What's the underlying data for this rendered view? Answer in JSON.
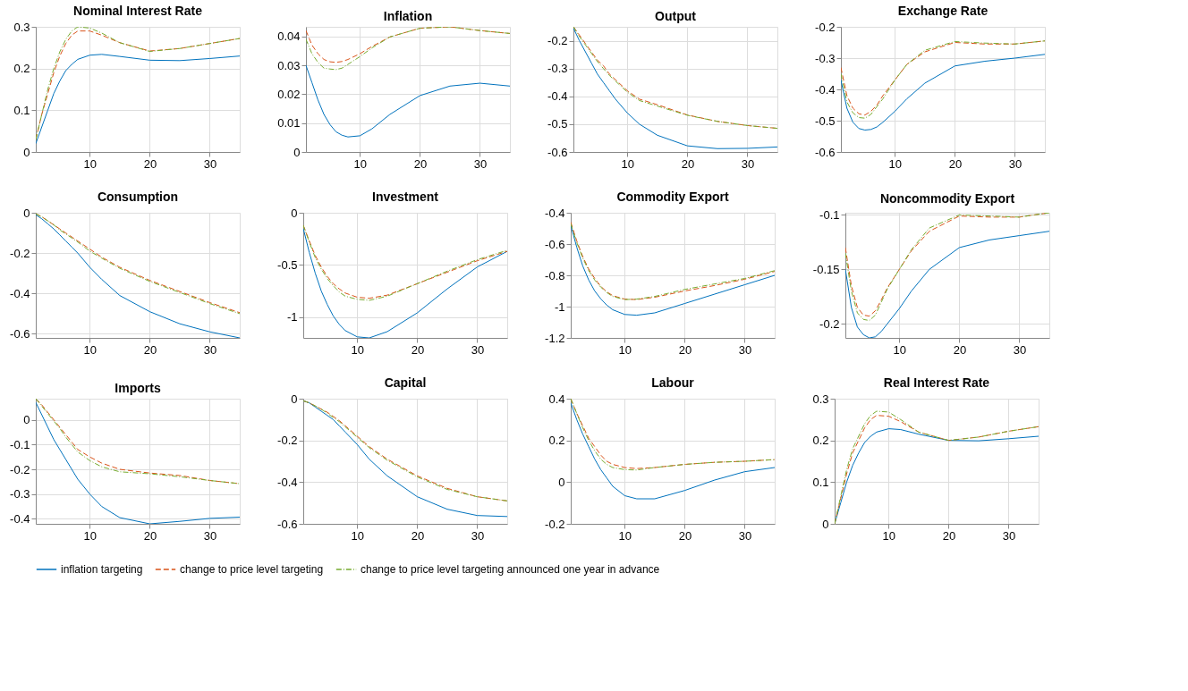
{
  "chart_data": [
    {
      "type": "line",
      "title": "Nominal Interest Rate",
      "x": [
        1,
        2,
        3,
        4,
        5,
        6,
        7,
        8,
        10,
        12,
        15,
        20,
        25,
        30,
        35
      ],
      "xlim": [
        1,
        35
      ],
      "xticks": [
        10,
        20,
        30
      ],
      "ylim": [
        0,
        0.3
      ],
      "yticks": [
        0,
        0.1,
        0.2,
        0.3
      ],
      "grid": true,
      "legend": "bottom",
      "series": [
        {
          "name": "inflation targeting",
          "color": "#0072bd",
          "line_style": "solid",
          "values": [
            0.02,
            0.06,
            0.1,
            0.14,
            0.17,
            0.195,
            0.21,
            0.222,
            0.232,
            0.234,
            0.229,
            0.22,
            0.219,
            0.224,
            0.23
          ]
        },
        {
          "name": "change to price level targeting",
          "color": "#d95319",
          "line_style": "dashed",
          "values": [
            0.03,
            0.09,
            0.14,
            0.19,
            0.23,
            0.26,
            0.28,
            0.29,
            0.29,
            0.28,
            0.262,
            0.242,
            0.248,
            0.26,
            0.272
          ]
        },
        {
          "name": "change to price level targeting announced one year in advance",
          "color": "#77ac30",
          "line_style": "dashdot",
          "values": [
            0.03,
            0.09,
            0.15,
            0.2,
            0.24,
            0.27,
            0.29,
            0.3,
            0.297,
            0.285,
            0.262,
            0.241,
            0.248,
            0.26,
            0.272
          ]
        }
      ]
    },
    {
      "type": "line",
      "title": "Inflation",
      "x": [
        1,
        2,
        3,
        4,
        5,
        6,
        7,
        8,
        10,
        12,
        15,
        20,
        25,
        30,
        35
      ],
      "xlim": [
        1,
        35
      ],
      "xticks": [
        10,
        20,
        30
      ],
      "ylim": [
        0,
        0.0433
      ],
      "yticks": [
        0,
        0.01,
        0.02,
        0.03,
        0.04
      ],
      "grid": true,
      "legend": "bottom",
      "series": [
        {
          "name": "inflation targeting",
          "color": "#0072bd",
          "line_style": "solid",
          "values": [
            0.03,
            0.024,
            0.018,
            0.013,
            0.0095,
            0.007,
            0.0058,
            0.0052,
            0.0056,
            0.008,
            0.013,
            0.0195,
            0.0228,
            0.0238,
            0.0228
          ]
        },
        {
          "name": "change to price level targeting",
          "color": "#d95319",
          "line_style": "dashed",
          "values": [
            0.042,
            0.037,
            0.034,
            0.032,
            0.0312,
            0.031,
            0.0313,
            0.032,
            0.034,
            0.0365,
            0.0398,
            0.0428,
            0.0433,
            0.042,
            0.041
          ]
        },
        {
          "name": "change to price level targeting announced one year in advance",
          "color": "#77ac30",
          "line_style": "dashdot",
          "values": [
            0.039,
            0.034,
            0.031,
            0.029,
            0.0287,
            0.0285,
            0.029,
            0.0303,
            0.033,
            0.036,
            0.0398,
            0.0428,
            0.0433,
            0.042,
            0.041
          ]
        }
      ]
    },
    {
      "type": "line",
      "title": "Output",
      "x": [
        1,
        2,
        3,
        4,
        5,
        6,
        7,
        8,
        10,
        12,
        15,
        20,
        25,
        30,
        35
      ],
      "xlim": [
        1,
        35
      ],
      "xticks": [
        10,
        20,
        30
      ],
      "ylim": [
        -0.6,
        -0.15
      ],
      "yticks": [
        -0.6,
        -0.5,
        -0.4,
        -0.3,
        -0.2
      ],
      "grid": true,
      "legend": "bottom",
      "series": [
        {
          "name": "inflation targeting",
          "color": "#0072bd",
          "line_style": "solid",
          "values": [
            -0.155,
            -0.2,
            -0.24,
            -0.28,
            -0.32,
            -0.35,
            -0.38,
            -0.41,
            -0.46,
            -0.5,
            -0.54,
            -0.578,
            -0.588,
            -0.587,
            -0.582
          ]
        },
        {
          "name": "change to price level targeting",
          "color": "#d95319",
          "line_style": "dashed",
          "values": [
            -0.15,
            -0.18,
            -0.21,
            -0.24,
            -0.27,
            -0.29,
            -0.32,
            -0.34,
            -0.38,
            -0.41,
            -0.43,
            -0.467,
            -0.49,
            -0.505,
            -0.515
          ]
        },
        {
          "name": "change to price level targeting announced one year in advance",
          "color": "#77ac30",
          "line_style": "dashdot",
          "values": [
            -0.15,
            -0.185,
            -0.215,
            -0.245,
            -0.275,
            -0.3,
            -0.325,
            -0.345,
            -0.385,
            -0.415,
            -0.435,
            -0.468,
            -0.49,
            -0.505,
            -0.515
          ]
        }
      ]
    },
    {
      "type": "line",
      "title": "Exchange Rate",
      "x": [
        1,
        2,
        3,
        4,
        5,
        6,
        7,
        8,
        10,
        12,
        15,
        20,
        25,
        30,
        35
      ],
      "xlim": [
        1,
        35
      ],
      "xticks": [
        10,
        20,
        30
      ],
      "ylim": [
        -0.6,
        -0.2
      ],
      "yticks": [
        -0.6,
        -0.5,
        -0.4,
        -0.3,
        -0.2
      ],
      "grid": true,
      "legend": "bottom",
      "series": [
        {
          "name": "inflation targeting",
          "color": "#0072bd",
          "line_style": "solid",
          "values": [
            -0.37,
            -0.46,
            -0.505,
            -0.525,
            -0.53,
            -0.528,
            -0.52,
            -0.505,
            -0.47,
            -0.43,
            -0.38,
            -0.325,
            -0.31,
            -0.3,
            -0.288
          ]
        },
        {
          "name": "change to price level targeting",
          "color": "#d95319",
          "line_style": "dashed",
          "values": [
            -0.33,
            -0.42,
            -0.46,
            -0.478,
            -0.482,
            -0.47,
            -0.45,
            -0.42,
            -0.37,
            -0.32,
            -0.28,
            -0.25,
            -0.255,
            -0.255,
            -0.245
          ]
        },
        {
          "name": "change to price level targeting announced one year in advance",
          "color": "#77ac30",
          "line_style": "dashdot",
          "values": [
            -0.35,
            -0.44,
            -0.475,
            -0.49,
            -0.492,
            -0.48,
            -0.455,
            -0.43,
            -0.37,
            -0.32,
            -0.275,
            -0.247,
            -0.252,
            -0.255,
            -0.245
          ]
        }
      ]
    },
    {
      "type": "line",
      "title": "Consumption",
      "x": [
        1,
        2,
        3,
        4,
        5,
        6,
        7,
        8,
        10,
        12,
        15,
        20,
        25,
        30,
        35
      ],
      "xlim": [
        1,
        35
      ],
      "xticks": [
        10,
        20,
        30
      ],
      "ylim": [
        -0.62,
        0
      ],
      "yticks": [
        -0.6,
        -0.4,
        -0.2,
        0
      ],
      "grid": true,
      "legend": "bottom",
      "series": [
        {
          "name": "inflation targeting",
          "color": "#0072bd",
          "line_style": "solid",
          "values": [
            -0.01,
            -0.03,
            -0.055,
            -0.08,
            -0.11,
            -0.14,
            -0.17,
            -0.2,
            -0.27,
            -0.33,
            -0.41,
            -0.49,
            -0.55,
            -0.59,
            -0.62
          ]
        },
        {
          "name": "change to price level targeting",
          "color": "#d95319",
          "line_style": "dashed",
          "values": [
            -0.005,
            -0.02,
            -0.04,
            -0.06,
            -0.08,
            -0.1,
            -0.12,
            -0.14,
            -0.18,
            -0.22,
            -0.27,
            -0.335,
            -0.39,
            -0.445,
            -0.495
          ]
        },
        {
          "name": "change to price level targeting announced one year in advance",
          "color": "#77ac30",
          "line_style": "dashdot",
          "values": [
            -0.005,
            -0.02,
            -0.04,
            -0.06,
            -0.085,
            -0.105,
            -0.125,
            -0.145,
            -0.19,
            -0.225,
            -0.275,
            -0.34,
            -0.395,
            -0.45,
            -0.5
          ]
        }
      ]
    },
    {
      "type": "line",
      "title": "Investment",
      "x": [
        1,
        2,
        3,
        4,
        5,
        6,
        7,
        8,
        10,
        12,
        15,
        20,
        25,
        30,
        35
      ],
      "xlim": [
        1,
        35
      ],
      "xticks": [
        10,
        20,
        30
      ],
      "ylim": [
        -1.2,
        0
      ],
      "yticks": [
        -1,
        -0.5,
        0
      ],
      "grid": true,
      "legend": "bottom",
      "series": [
        {
          "name": "inflation targeting",
          "color": "#0072bd",
          "line_style": "solid",
          "values": [
            -0.15,
            -0.38,
            -0.58,
            -0.75,
            -0.88,
            -0.99,
            -1.07,
            -1.13,
            -1.19,
            -1.2,
            -1.14,
            -0.96,
            -0.73,
            -0.52,
            -0.37
          ]
        },
        {
          "name": "change to price level targeting",
          "color": "#d95319",
          "line_style": "dashed",
          "values": [
            -0.12,
            -0.27,
            -0.41,
            -0.52,
            -0.61,
            -0.68,
            -0.73,
            -0.77,
            -0.81,
            -0.82,
            -0.79,
            -0.68,
            -0.57,
            -0.46,
            -0.37
          ]
        },
        {
          "name": "change to price level targeting announced one year in advance",
          "color": "#77ac30",
          "line_style": "dashdot",
          "values": [
            -0.12,
            -0.28,
            -0.43,
            -0.54,
            -0.63,
            -0.7,
            -0.76,
            -0.8,
            -0.83,
            -0.84,
            -0.8,
            -0.68,
            -0.56,
            -0.45,
            -0.36
          ]
        }
      ]
    },
    {
      "type": "line",
      "title": "Commodity Export",
      "x": [
        1,
        2,
        3,
        4,
        5,
        6,
        7,
        8,
        10,
        12,
        15,
        20,
        25,
        30,
        35
      ],
      "xlim": [
        1,
        35
      ],
      "xticks": [
        10,
        20,
        30
      ],
      "ylim": [
        -1.2,
        -0.4
      ],
      "yticks": [
        -1.2,
        -1,
        -0.8,
        -0.6,
        -0.4
      ],
      "grid": true,
      "legend": "bottom",
      "series": [
        {
          "name": "inflation targeting",
          "color": "#0072bd",
          "line_style": "solid",
          "values": [
            -0.48,
            -0.62,
            -0.74,
            -0.83,
            -0.9,
            -0.95,
            -0.99,
            -1.02,
            -1.05,
            -1.055,
            -1.04,
            -0.98,
            -0.92,
            -0.86,
            -0.8
          ]
        },
        {
          "name": "change to price level targeting",
          "color": "#d95319",
          "line_style": "dashed",
          "values": [
            -0.46,
            -0.58,
            -0.68,
            -0.76,
            -0.82,
            -0.87,
            -0.905,
            -0.93,
            -0.952,
            -0.955,
            -0.94,
            -0.9,
            -0.865,
            -0.825,
            -0.775
          ]
        },
        {
          "name": "change to price level targeting announced one year in advance",
          "color": "#77ac30",
          "line_style": "dashdot",
          "values": [
            -0.47,
            -0.59,
            -0.69,
            -0.77,
            -0.83,
            -0.875,
            -0.91,
            -0.935,
            -0.955,
            -0.952,
            -0.935,
            -0.89,
            -0.855,
            -0.82,
            -0.77
          ]
        }
      ]
    },
    {
      "type": "line",
      "title": "Noncommodity Export",
      "x": [
        1,
        2,
        3,
        4,
        5,
        6,
        7,
        8,
        10,
        12,
        15,
        20,
        25,
        30,
        35
      ],
      "xlim": [
        1,
        35
      ],
      "xticks": [
        10,
        20,
        30
      ],
      "ylim": [
        -0.213,
        -0.098
      ],
      "yticks": [
        -0.2,
        -0.15,
        -0.1
      ],
      "grid": true,
      "legend": "bottom",
      "series": [
        {
          "name": "inflation targeting",
          "color": "#0072bd",
          "line_style": "solid",
          "values": [
            -0.15,
            -0.185,
            -0.203,
            -0.21,
            -0.213,
            -0.212,
            -0.207,
            -0.2,
            -0.186,
            -0.17,
            -0.15,
            -0.13,
            -0.123,
            -0.119,
            -0.115
          ]
        },
        {
          "name": "change to price level targeting",
          "color": "#d95319",
          "line_style": "dashed",
          "values": [
            -0.13,
            -0.165,
            -0.185,
            -0.192,
            -0.193,
            -0.188,
            -0.178,
            -0.167,
            -0.15,
            -0.133,
            -0.115,
            -0.101,
            -0.102,
            -0.102,
            -0.098
          ]
        },
        {
          "name": "change to price level targeting announced one year in advance",
          "color": "#77ac30",
          "line_style": "dashdot",
          "values": [
            -0.135,
            -0.17,
            -0.19,
            -0.196,
            -0.197,
            -0.192,
            -0.18,
            -0.168,
            -0.15,
            -0.132,
            -0.112,
            -0.1,
            -0.101,
            -0.102,
            -0.098
          ]
        }
      ]
    },
    {
      "type": "line",
      "title": "Imports",
      "x": [
        1,
        2,
        3,
        4,
        5,
        6,
        7,
        8,
        10,
        12,
        15,
        20,
        25,
        30,
        35
      ],
      "xlim": [
        1,
        35
      ],
      "xticks": [
        10,
        20,
        30
      ],
      "ylim": [
        -0.42,
        0.085
      ],
      "yticks": [
        -0.4,
        -0.3,
        -0.2,
        -0.1,
        0
      ],
      "grid": true,
      "legend": "bottom",
      "series": [
        {
          "name": "inflation targeting",
          "color": "#0072bd",
          "line_style": "solid",
          "values": [
            0.07,
            0.02,
            -0.03,
            -0.08,
            -0.12,
            -0.16,
            -0.2,
            -0.24,
            -0.3,
            -0.35,
            -0.395,
            -0.42,
            -0.41,
            -0.398,
            -0.393
          ]
        },
        {
          "name": "change to price level targeting",
          "color": "#d95319",
          "line_style": "dashed",
          "values": [
            0.085,
            0.06,
            0.03,
            0.0,
            -0.03,
            -0.06,
            -0.09,
            -0.12,
            -0.15,
            -0.175,
            -0.2,
            -0.215,
            -0.225,
            -0.245,
            -0.258
          ]
        },
        {
          "name": "change to price level targeting announced one year in advance",
          "color": "#77ac30",
          "line_style": "dashdot",
          "values": [
            0.085,
            0.055,
            0.025,
            -0.005,
            -0.035,
            -0.07,
            -0.1,
            -0.13,
            -0.165,
            -0.19,
            -0.21,
            -0.218,
            -0.23,
            -0.245,
            -0.258
          ]
        }
      ]
    },
    {
      "type": "line",
      "title": "Capital",
      "x": [
        1,
        2,
        3,
        4,
        5,
        6,
        7,
        8,
        10,
        12,
        15,
        20,
        25,
        30,
        35
      ],
      "xlim": [
        1,
        35
      ],
      "xticks": [
        10,
        20,
        30
      ],
      "ylim": [
        -0.6,
        0
      ],
      "yticks": [
        -0.6,
        -0.4,
        -0.2,
        0
      ],
      "grid": true,
      "legend": "bottom",
      "series": [
        {
          "name": "inflation targeting",
          "color": "#0072bd",
          "line_style": "solid",
          "values": [
            -0.01,
            -0.02,
            -0.04,
            -0.06,
            -0.08,
            -0.1,
            -0.13,
            -0.16,
            -0.22,
            -0.29,
            -0.37,
            -0.47,
            -0.53,
            -0.56,
            -0.565
          ]
        },
        {
          "name": "change to price level targeting",
          "color": "#d95319",
          "line_style": "dashed",
          "values": [
            -0.01,
            -0.02,
            -0.035,
            -0.05,
            -0.065,
            -0.085,
            -0.105,
            -0.13,
            -0.18,
            -0.23,
            -0.29,
            -0.37,
            -0.43,
            -0.47,
            -0.49
          ]
        },
        {
          "name": "change to price level targeting announced one year in advance",
          "color": "#77ac30",
          "line_style": "dashdot",
          "values": [
            -0.01,
            -0.02,
            -0.035,
            -0.05,
            -0.07,
            -0.09,
            -0.11,
            -0.135,
            -0.185,
            -0.235,
            -0.295,
            -0.375,
            -0.435,
            -0.47,
            -0.49
          ]
        }
      ]
    },
    {
      "type": "line",
      "title": "Labour",
      "x": [
        1,
        2,
        3,
        4,
        5,
        6,
        7,
        8,
        10,
        12,
        15,
        20,
        25,
        30,
        35
      ],
      "xlim": [
        1,
        35
      ],
      "xticks": [
        10,
        20,
        30
      ],
      "ylim": [
        -0.2,
        0.4
      ],
      "yticks": [
        -0.2,
        0,
        0.2,
        0.4
      ],
      "grid": true,
      "legend": "bottom",
      "series": [
        {
          "name": "inflation targeting",
          "color": "#0072bd",
          "line_style": "solid",
          "values": [
            0.38,
            0.3,
            0.23,
            0.17,
            0.11,
            0.06,
            0.02,
            -0.02,
            -0.065,
            -0.08,
            -0.08,
            -0.04,
            0.01,
            0.05,
            0.07
          ]
        },
        {
          "name": "change to price level targeting",
          "color": "#d95319",
          "line_style": "dashed",
          "values": [
            0.4,
            0.33,
            0.27,
            0.21,
            0.17,
            0.13,
            0.1,
            0.085,
            0.07,
            0.065,
            0.07,
            0.085,
            0.095,
            0.1,
            0.108
          ]
        },
        {
          "name": "change to price level targeting announced one year in advance",
          "color": "#77ac30",
          "line_style": "dashdot",
          "values": [
            0.4,
            0.33,
            0.26,
            0.2,
            0.15,
            0.11,
            0.085,
            0.07,
            0.06,
            0.058,
            0.07,
            0.085,
            0.095,
            0.1,
            0.108
          ]
        }
      ]
    },
    {
      "type": "line",
      "title": "Real Interest Rate",
      "x": [
        1,
        2,
        3,
        4,
        5,
        6,
        7,
        8,
        10,
        12,
        15,
        20,
        25,
        30,
        35
      ],
      "xlim": [
        1,
        35
      ],
      "xticks": [
        10,
        20,
        30
      ],
      "ylim": [
        0,
        0.3
      ],
      "yticks": [
        0,
        0.1,
        0.2,
        0.3
      ],
      "grid": true,
      "legend": "bottom",
      "series": [
        {
          "name": "inflation targeting",
          "color": "#0072bd",
          "line_style": "solid",
          "values": [
            0.0,
            0.05,
            0.1,
            0.14,
            0.17,
            0.195,
            0.21,
            0.22,
            0.228,
            0.226,
            0.215,
            0.2,
            0.199,
            0.204,
            0.21
          ]
        },
        {
          "name": "change to price level targeting",
          "color": "#d95319",
          "line_style": "dashed",
          "values": [
            0.0,
            0.06,
            0.12,
            0.17,
            0.2,
            0.23,
            0.25,
            0.26,
            0.258,
            0.245,
            0.22,
            0.2,
            0.208,
            0.222,
            0.233
          ]
        },
        {
          "name": "change to price level targeting announced one year in advance",
          "color": "#77ac30",
          "line_style": "dashdot",
          "values": [
            0.0,
            0.065,
            0.13,
            0.18,
            0.21,
            0.24,
            0.26,
            0.27,
            0.268,
            0.25,
            0.22,
            0.2,
            0.208,
            0.222,
            0.233
          ]
        }
      ]
    }
  ]
}
